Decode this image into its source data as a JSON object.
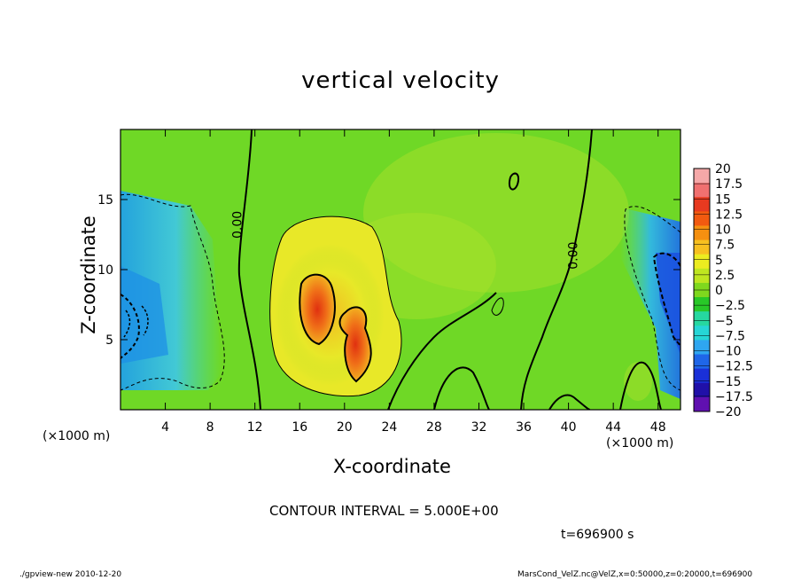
{
  "chart_data": {
    "type": "heatmap",
    "title": "vertical velocity",
    "xlabel": "X-coordinate",
    "ylabel": "Z-coordinate",
    "x_unit_label": "(×1000 m)",
    "xlim": [
      0,
      50
    ],
    "ylim": [
      0,
      20
    ],
    "xticks": [
      4,
      8,
      12,
      16,
      20,
      24,
      28,
      32,
      36,
      40,
      44,
      48
    ],
    "yticks": [
      5,
      10,
      15
    ],
    "contour_labels": [
      {
        "text": "0.00",
        "x": 10.8,
        "z": 13.2
      },
      {
        "text": "0.00",
        "x": 40.8,
        "z": 11.0
      }
    ],
    "colorbar": {
      "labels": [
        "20",
        "17.5",
        "15",
        "12.5",
        "10",
        "7.5",
        "5",
        "2.5",
        "0",
        "−2.5",
        "−5",
        "−7.5",
        "−10",
        "−12.5",
        "−15",
        "−17.5",
        "−20"
      ],
      "colors": [
        "#f5a8a8",
        "#f07070",
        "#e83a20",
        "#f25a10",
        "#f59010",
        "#f7c020",
        "#ecec20",
        "#bfe620",
        "#7fd81e",
        "#28c828",
        "#26d8a0",
        "#26d6d6",
        "#2fa6f0",
        "#1f66e8",
        "#1a30d8",
        "#2010a8",
        "#6010b0"
      ]
    }
  },
  "contour_interval": "CONTOUR INTERVAL = 5.000E+00",
  "time_label": "t=696900 s",
  "footer_left": "./gpview-new  2010-12-20",
  "footer_right": "MarsCond_VelZ.nc@VelZ,x=0:50000,z=0:20000,t=696900"
}
